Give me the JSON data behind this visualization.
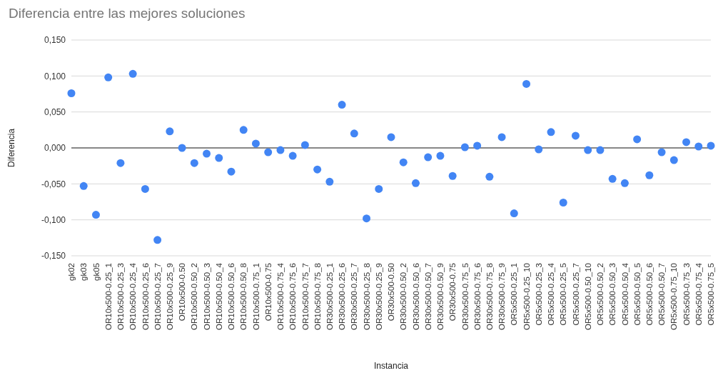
{
  "chart_data": {
    "type": "scatter",
    "title": "Diferencia entre las mejores soluciones",
    "xlabel": "Instancia",
    "ylabel": "Diferencia",
    "categories": [
      "gk02",
      "gk03",
      "gk05",
      "OR10x500-0.25_1",
      "OR10x500-0.25_3",
      "OR10x500-0.25_4",
      "OR10x500-0.25_6",
      "OR10x500-0.25_7",
      "OR10x500-0.25_9",
      "OR10x500-0.50",
      "OR10x500-0.50_2",
      "OR10x500-0.50_3",
      "OR10x500-0.50_4",
      "OR10x500-0.50_6",
      "OR10x500-0.50_8",
      "OR10x500-0.75_1",
      "OR10x500-0.75",
      "OR10x500-0.75_4",
      "OR10x500-0.75_6",
      "OR10x500-0.75_7",
      "OR10x500-0.75_8",
      "OR30x500-0.25_1",
      "OR30x500-0.25_6",
      "OR30x500-0.25_7",
      "OR30x500-0.25_8",
      "OR30x500-0.25_9",
      "OR30x500-0.50",
      "OR30x500-0.50_2",
      "OR30x500-0.50_6",
      "OR30x500-0.50_7",
      "OR30x500-0.50_9",
      "OR30x500-0.75",
      "OR30x500-0.75_5",
      "OR30x500-0.75_6",
      "OR30x500-0.75_8",
      "OR30x500-0.75_9",
      "OR5x500-0.25_1",
      "OR5x500-0.25_10",
      "OR5x500-0.25_3",
      "OR5x500-0.25_4",
      "OR5x500-0.25_5",
      "OR5x500-0.25_7",
      "OR5x500-0.50_10",
      "OR5x500-0.50_2",
      "OR5x500-0.50_3",
      "OR5x500-0.50_4",
      "OR5x500-0.50_5",
      "OR5x500-0.50_6",
      "OR5x500-0.50_7",
      "OR5x500-0.75_10",
      "OR5x500-0.75_3",
      "OR5x500-0.75_4",
      "OR5x500-0.75_5"
    ],
    "series": [
      {
        "color": "#4285f4",
        "values": [
          0.076,
          -0.053,
          -0.093,
          0.098,
          -0.021,
          0.103,
          -0.057,
          -0.128,
          0.023,
          0.0,
          -0.021,
          -0.008,
          -0.014,
          -0.033,
          0.025,
          0.006,
          -0.006,
          -0.003,
          -0.011,
          0.004,
          -0.03,
          -0.047,
          0.06,
          0.02,
          -0.098,
          -0.057,
          0.015,
          -0.02,
          -0.049,
          -0.013,
          -0.011,
          -0.039,
          0.001,
          0.003,
          -0.04,
          0.015,
          -0.091,
          0.089,
          -0.002,
          0.022,
          -0.076,
          0.017,
          -0.003,
          -0.003,
          -0.043,
          -0.049,
          0.012,
          -0.038,
          -0.006,
          -0.017,
          0.008,
          0.002,
          0.003
        ]
      }
    ],
    "ylim": [
      -0.15,
      0.15
    ],
    "yticks": [
      {
        "value": -0.15,
        "label": "-0,150"
      },
      {
        "value": -0.1,
        "label": "-0,100"
      },
      {
        "value": -0.05,
        "label": "-0,050"
      },
      {
        "value": 0,
        "label": "0,000"
      },
      {
        "value": 0.05,
        "label": "0,050"
      },
      {
        "value": 0.1,
        "label": "0,100"
      },
      {
        "value": 0.15,
        "label": "0,150"
      }
    ],
    "ref_lines": [
      {
        "axis": "y",
        "value": 0,
        "color": "#666666"
      }
    ],
    "grid": "y",
    "legend": false,
    "marker": "circle"
  }
}
